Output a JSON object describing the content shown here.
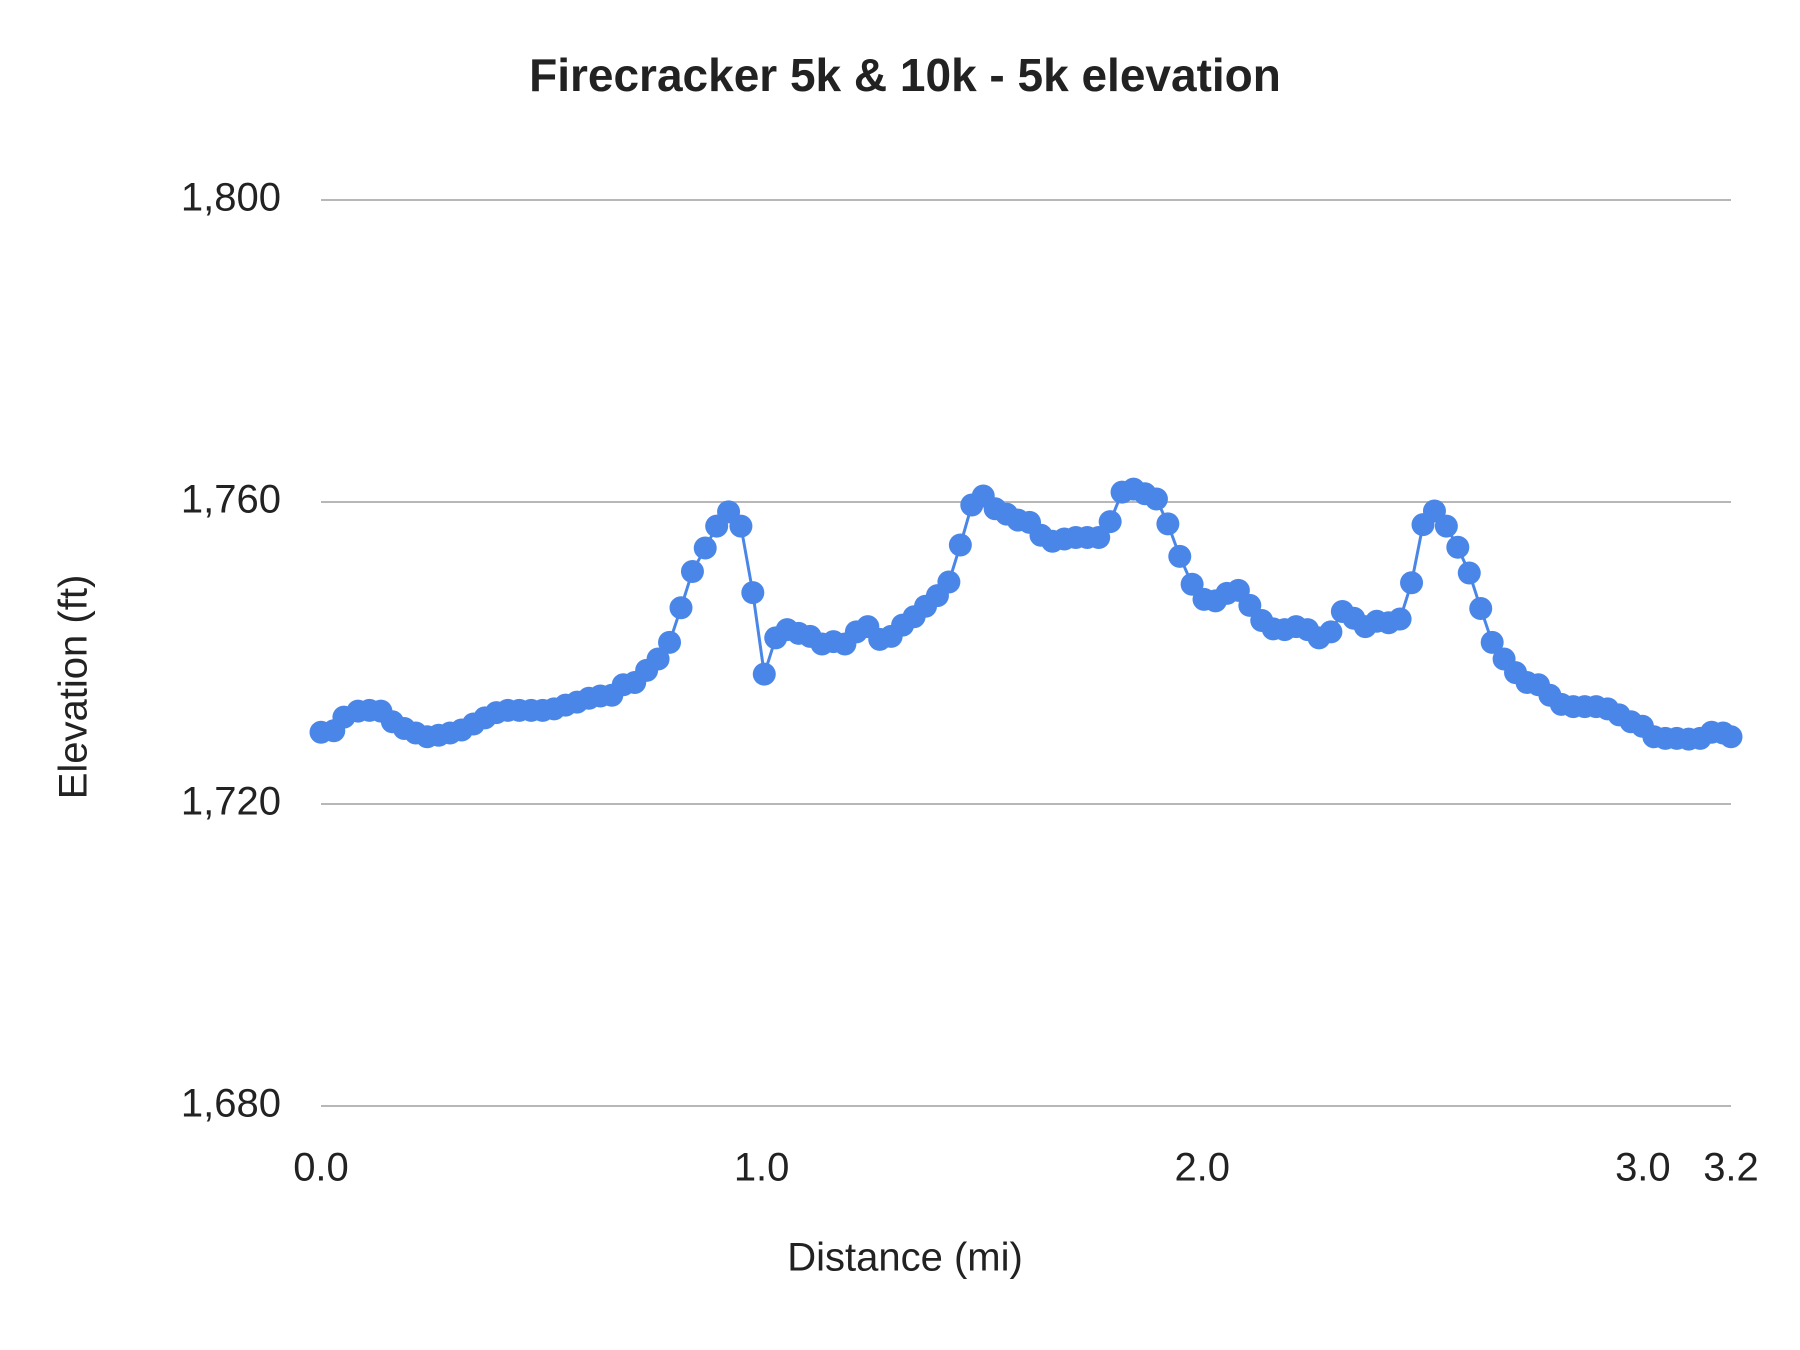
{
  "chart_data": {
    "type": "line",
    "title": "Firecracker 5k & 10k - 5k elevation",
    "x_label": "Distance (mi)",
    "y_label": "Elevation (ft)",
    "xlim": [
      0,
      3.2
    ],
    "xticks": [
      {
        "value": 0,
        "label": "0.0"
      },
      {
        "value": 1,
        "label": "1.0"
      },
      {
        "value": 2,
        "label": "2.0"
      },
      {
        "value": 3,
        "label": "3.0"
      },
      3.2
    ],
    "ylim": [
      1680,
      1800
    ],
    "yticks": [
      {
        "value": 1680,
        "label": "1,680"
      },
      {
        "value": 1720,
        "label": "1,720"
      },
      {
        "value": 1760,
        "label": "1,760"
      },
      {
        "value": 1800,
        "label": "1,800"
      }
    ],
    "grid": true,
    "x": [
      0,
      0.029,
      0.052,
      0.084,
      0.11,
      0.136,
      0.162,
      0.189,
      0.215,
      0.241,
      0.267,
      0.293,
      0.319,
      0.346,
      0.372,
      0.398,
      0.424,
      0.45,
      0.477,
      0.503,
      0.529,
      0.555,
      0.581,
      0.608,
      0.634,
      0.66,
      0.686,
      0.712,
      0.739,
      0.765,
      0.791,
      0.817,
      0.843,
      0.872,
      0.898,
      0.925,
      0.953,
      0.98,
      1.006,
      1.032,
      1.058,
      1.084,
      1.11,
      1.137,
      1.163,
      1.189,
      1.215,
      1.241,
      1.268,
      1.294,
      1.32,
      1.346,
      1.372,
      1.399,
      1.425,
      1.451,
      1.477,
      1.503,
      1.53,
      1.556,
      1.582,
      1.608,
      1.634,
      1.66,
      1.687,
      1.713,
      1.739,
      1.765,
      1.791,
      1.818,
      1.844,
      1.87,
      1.896,
      1.922,
      1.949,
      1.977,
      2.004,
      2.03,
      2.056,
      2.082,
      2.108,
      2.135,
      2.161,
      2.187,
      2.213,
      2.239,
      2.265,
      2.292,
      2.318,
      2.344,
      2.37,
      2.396,
      2.423,
      2.449,
      2.475,
      2.501,
      2.527,
      2.554,
      2.58,
      2.606,
      2.632,
      2.658,
      2.685,
      2.711,
      2.737,
      2.763,
      2.789,
      2.815,
      2.842,
      2.868,
      2.894,
      2.92,
      2.946,
      2.973,
      2.999,
      3.025,
      3.051,
      3.077,
      3.104,
      3.13,
      3.156,
      3.182,
      3.2
    ],
    "series": [
      {
        "name": "Elevation",
        "color": "#4a86e8",
        "values": [
          1729.5,
          1729.7,
          1731.5,
          1732.3,
          1732.4,
          1732.3,
          1730.9,
          1730.0,
          1729.4,
          1728.9,
          1729.1,
          1729.4,
          1729.8,
          1730.6,
          1731.4,
          1732.1,
          1732.4,
          1732.4,
          1732.4,
          1732.4,
          1732.6,
          1733.1,
          1733.5,
          1734.0,
          1734.3,
          1734.4,
          1735.8,
          1736.1,
          1737.7,
          1739.2,
          1741.4,
          1746.0,
          1750.8,
          1753.9,
          1756.8,
          1758.7,
          1756.8,
          1748.0,
          1737.2,
          1742.0,
          1743.1,
          1742.6,
          1742.2,
          1741.2,
          1741.5,
          1741.2,
          1742.8,
          1743.5,
          1741.8,
          1742.2,
          1743.7,
          1744.8,
          1746.2,
          1747.6,
          1749.4,
          1754.3,
          1759.6,
          1760.8,
          1759.1,
          1758.4,
          1757.6,
          1757.3,
          1755.6,
          1754.8,
          1755.1,
          1755.3,
          1755.3,
          1755.3,
          1757.4,
          1761.3,
          1761.7,
          1761.1,
          1760.4,
          1757.1,
          1752.8,
          1749.1,
          1747.1,
          1746.9,
          1747.9,
          1748.3,
          1746.3,
          1744.3,
          1743.2,
          1743.1,
          1743.5,
          1743.1,
          1742.0,
          1742.8,
          1745.5,
          1744.6,
          1743.5,
          1744.2,
          1744.0,
          1744.5,
          1749.3,
          1757.0,
          1758.8,
          1756.8,
          1754.0,
          1750.6,
          1745.9,
          1741.4,
          1739.2,
          1737.4,
          1736.1,
          1735.8,
          1734.4,
          1733.2,
          1732.9,
          1732.9,
          1732.9,
          1732.6,
          1731.8,
          1730.9,
          1730.3,
          1728.9,
          1728.7,
          1728.7,
          1728.6,
          1728.7,
          1729.5,
          1729.4,
          1728.9
        ]
      }
    ]
  }
}
